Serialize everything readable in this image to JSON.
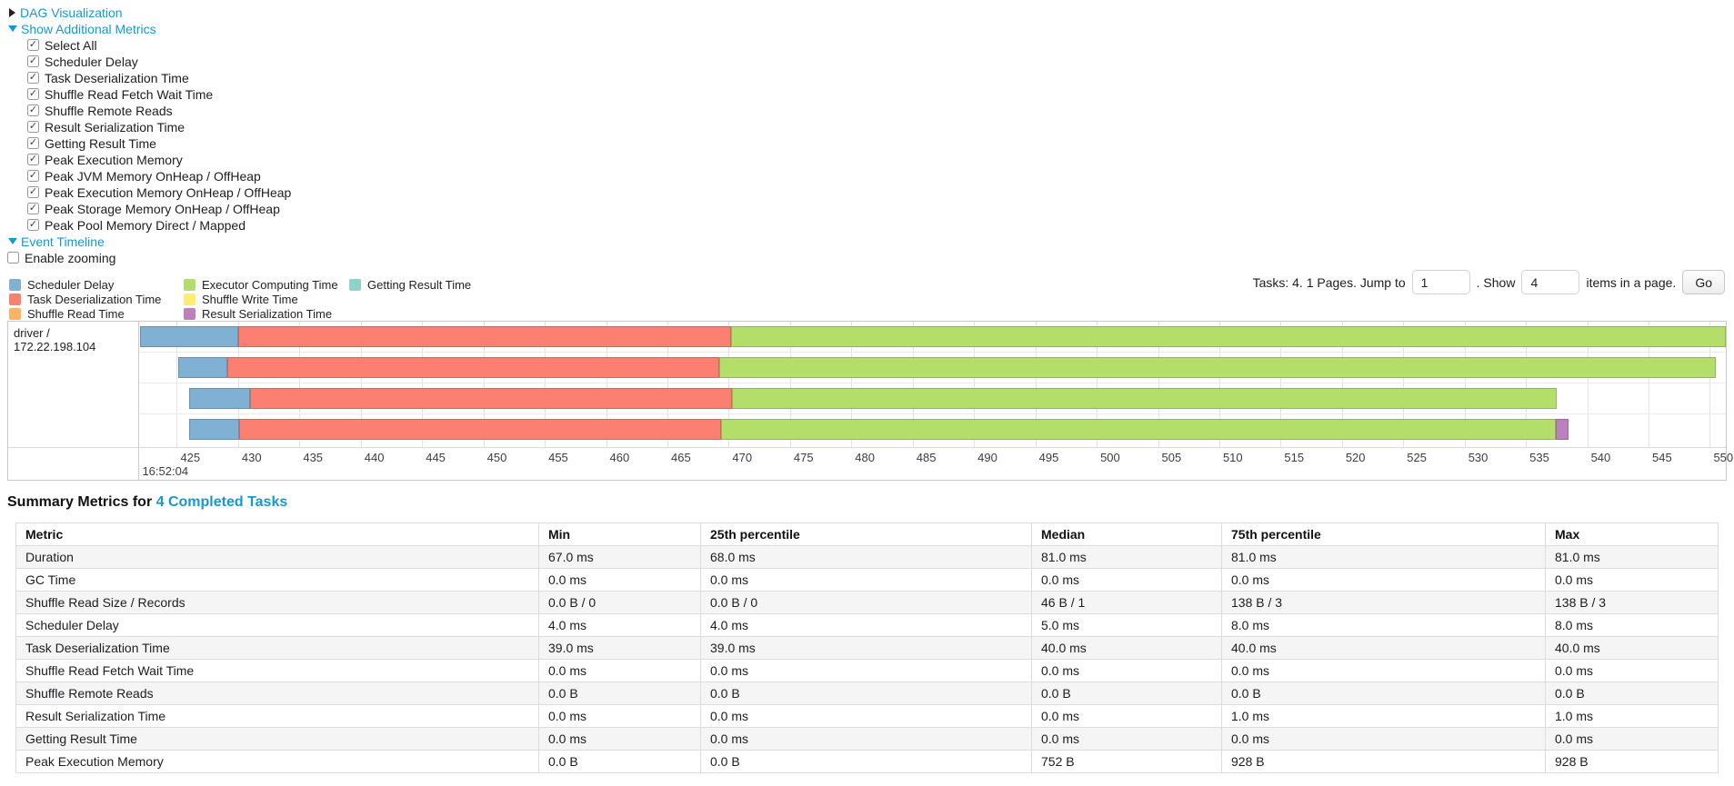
{
  "expanders": {
    "dag": "DAG Visualization",
    "metrics": "Show Additional Metrics",
    "timeline": "Event Timeline",
    "enable_zooming": "Enable zooming"
  },
  "metric_checkboxes": [
    {
      "label": "Select All",
      "checked": true
    },
    {
      "label": "Scheduler Delay",
      "checked": true
    },
    {
      "label": "Task Deserialization Time",
      "checked": true
    },
    {
      "label": "Shuffle Read Fetch Wait Time",
      "checked": true
    },
    {
      "label": "Shuffle Remote Reads",
      "checked": true
    },
    {
      "label": "Result Serialization Time",
      "checked": true
    },
    {
      "label": "Getting Result Time",
      "checked": true
    },
    {
      "label": "Peak Execution Memory",
      "checked": true
    },
    {
      "label": "Peak JVM Memory OnHeap / OffHeap",
      "checked": true
    },
    {
      "label": "Peak Execution Memory OnHeap / OffHeap",
      "checked": true
    },
    {
      "label": "Peak Storage Memory OnHeap / OffHeap",
      "checked": true
    },
    {
      "label": "Peak Pool Memory Direct / Mapped",
      "checked": true
    }
  ],
  "pagination": {
    "info": "Tasks: 4. 1 Pages. Jump to",
    "jump_value": "1",
    "mid": ". Show",
    "show_value": "4",
    "suffix": "items in a page.",
    "go_label": "Go"
  },
  "chart_data": {
    "type": "timeline-gantt",
    "row_label": "driver / 172.22.198.104",
    "palette": {
      "scheduler_delay": "#80B1D3",
      "deserialization": "#FB8072",
      "shuffle_read": "#FDB462",
      "executor_computing": "#B3DE69",
      "shuffle_write": "#FFED6F",
      "result_serialization": "#BC80BD",
      "getting_result": "#8DD3C7"
    },
    "legend": [
      {
        "key": "scheduler_delay",
        "label": "Scheduler Delay"
      },
      {
        "key": "deserialization",
        "label": "Task Deserialization Time"
      },
      {
        "key": "shuffle_read",
        "label": "Shuffle Read Time"
      },
      {
        "key": "executor_computing",
        "label": "Executor Computing Time"
      },
      {
        "key": "shuffle_write",
        "label": "Shuffle Write Time"
      },
      {
        "key": "result_serialization",
        "label": "Result Serialization Time"
      },
      {
        "key": "getting_result",
        "label": "Getting Result Time"
      }
    ],
    "x_axis": {
      "min": 422,
      "max": 551.3,
      "tick_start": 425,
      "tick_end": 550,
      "tick_step": 5,
      "start_time_label": "16:52:04"
    },
    "tasks": [
      {
        "segments": [
          {
            "key": "scheduler_delay",
            "start": 422.0,
            "end": 430.0
          },
          {
            "key": "deserialization",
            "start": 430.0,
            "end": 470.2
          },
          {
            "key": "executor_computing",
            "start": 470.2,
            "end": 551.3
          }
        ]
      },
      {
        "segments": [
          {
            "key": "scheduler_delay",
            "start": 425.1,
            "end": 429.1
          },
          {
            "key": "deserialization",
            "start": 429.1,
            "end": 469.2
          },
          {
            "key": "executor_computing",
            "start": 469.2,
            "end": 550.5
          }
        ]
      },
      {
        "segments": [
          {
            "key": "scheduler_delay",
            "start": 426.0,
            "end": 431.0
          },
          {
            "key": "deserialization",
            "start": 431.0,
            "end": 470.3
          },
          {
            "key": "executor_computing",
            "start": 470.3,
            "end": 537.5
          }
        ]
      },
      {
        "segments": [
          {
            "key": "scheduler_delay",
            "start": 426.0,
            "end": 430.1
          },
          {
            "key": "deserialization",
            "start": 430.1,
            "end": 469.4
          },
          {
            "key": "executor_computing",
            "start": 469.4,
            "end": 537.4
          },
          {
            "key": "result_serialization",
            "start": 537.4,
            "end": 538.5
          }
        ]
      }
    ]
  },
  "summary": {
    "title_prefix": "Summary Metrics for ",
    "title_link": "4 Completed Tasks",
    "columns": [
      "Metric",
      "Min",
      "25th percentile",
      "Median",
      "75th percentile",
      "Max"
    ],
    "rows": [
      {
        "metric": "Duration",
        "values": [
          "67.0 ms",
          "68.0 ms",
          "81.0 ms",
          "81.0 ms",
          "81.0 ms"
        ]
      },
      {
        "metric": "GC Time",
        "values": [
          "0.0 ms",
          "0.0 ms",
          "0.0 ms",
          "0.0 ms",
          "0.0 ms"
        ]
      },
      {
        "metric": "Shuffle Read Size / Records",
        "values": [
          "0.0 B / 0",
          "0.0 B / 0",
          "46 B / 1",
          "138 B / 3",
          "138 B / 3"
        ]
      },
      {
        "metric": "Scheduler Delay",
        "values": [
          "4.0 ms",
          "4.0 ms",
          "5.0 ms",
          "8.0 ms",
          "8.0 ms"
        ]
      },
      {
        "metric": "Task Deserialization Time",
        "values": [
          "39.0 ms",
          "39.0 ms",
          "40.0 ms",
          "40.0 ms",
          "40.0 ms"
        ]
      },
      {
        "metric": "Shuffle Read Fetch Wait Time",
        "values": [
          "0.0 ms",
          "0.0 ms",
          "0.0 ms",
          "0.0 ms",
          "0.0 ms"
        ]
      },
      {
        "metric": "Shuffle Remote Reads",
        "values": [
          "0.0 B",
          "0.0 B",
          "0.0 B",
          "0.0 B",
          "0.0 B"
        ]
      },
      {
        "metric": "Result Serialization Time",
        "values": [
          "0.0 ms",
          "0.0 ms",
          "0.0 ms",
          "1.0 ms",
          "1.0 ms"
        ]
      },
      {
        "metric": "Getting Result Time",
        "values": [
          "0.0 ms",
          "0.0 ms",
          "0.0 ms",
          "0.0 ms",
          "0.0 ms"
        ]
      },
      {
        "metric": "Peak Execution Memory",
        "values": [
          "0.0 B",
          "0.0 B",
          "752 B",
          "928 B",
          "928 B"
        ]
      }
    ]
  }
}
